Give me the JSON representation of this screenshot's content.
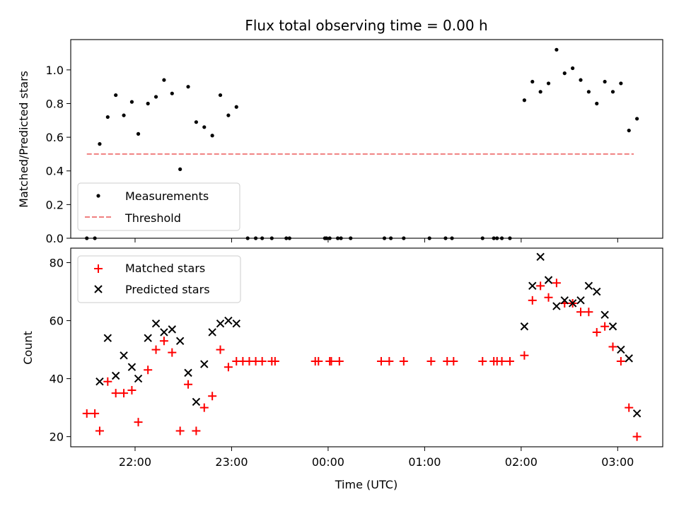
{
  "chart_data": [
    {
      "type": "scatter",
      "title": "Flux total observing time = 0.00 h",
      "xlabel": "",
      "ylabel": "Matched/Predicted stars",
      "xlim": [
        "21:20",
        "03:28"
      ],
      "ylim": [
        0,
        1.18
      ],
      "yticks": [
        "0.0",
        "0.2",
        "0.4",
        "0.6",
        "0.8",
        "1.0"
      ],
      "legend": {
        "placement": "lower-left",
        "entries": [
          "Measurements",
          "Threshold"
        ]
      },
      "colors": {
        "measurements": "#000000",
        "threshold": "#f08080"
      },
      "threshold": {
        "name": "Threshold",
        "x": [
          "21:30",
          "03:10"
        ],
        "y": 0.5
      },
      "series": [
        {
          "name": "Measurements",
          "points": [
            [
              "21:30",
              0.0
            ],
            [
              "21:35",
              0.0
            ],
            [
              "21:38",
              0.56
            ],
            [
              "21:43",
              0.72
            ],
            [
              "21:48",
              0.85
            ],
            [
              "21:53",
              0.73
            ],
            [
              "21:58",
              0.81
            ],
            [
              "22:02",
              0.62
            ],
            [
              "22:08",
              0.8
            ],
            [
              "22:13",
              0.84
            ],
            [
              "22:18",
              0.94
            ],
            [
              "22:23",
              0.86
            ],
            [
              "22:28",
              0.41
            ],
            [
              "22:33",
              0.9
            ],
            [
              "22:38",
              0.69
            ],
            [
              "22:43",
              0.66
            ],
            [
              "22:48",
              0.61
            ],
            [
              "22:53",
              0.85
            ],
            [
              "22:58",
              0.73
            ],
            [
              "23:03",
              0.78
            ],
            [
              "23:10",
              0.0
            ],
            [
              "23:15",
              0.0
            ],
            [
              "23:19",
              0.0
            ],
            [
              "23:25",
              0.0
            ],
            [
              "23:34",
              0.0
            ],
            [
              "23:36",
              0.0
            ],
            [
              "23:58",
              0.0
            ],
            [
              "23:59",
              0.0
            ],
            [
              "00:01",
              0.0
            ],
            [
              "00:06",
              0.0
            ],
            [
              "00:08",
              0.0
            ],
            [
              "00:14",
              0.0
            ],
            [
              "00:35",
              0.0
            ],
            [
              "00:39",
              0.0
            ],
            [
              "00:47",
              0.0
            ],
            [
              "01:03",
              0.0
            ],
            [
              "01:13",
              0.0
            ],
            [
              "01:17",
              0.0
            ],
            [
              "01:36",
              0.0
            ],
            [
              "01:43",
              0.0
            ],
            [
              "01:45",
              0.0
            ],
            [
              "01:48",
              0.0
            ],
            [
              "01:53",
              0.0
            ],
            [
              "02:02",
              0.82
            ],
            [
              "02:07",
              0.93
            ],
            [
              "02:12",
              0.87
            ],
            [
              "02:17",
              0.92
            ],
            [
              "02:22",
              1.12
            ],
            [
              "02:27",
              0.98
            ],
            [
              "02:32",
              1.01
            ],
            [
              "02:37",
              0.94
            ],
            [
              "02:42",
              0.87
            ],
            [
              "02:47",
              0.8
            ],
            [
              "02:52",
              0.93
            ],
            [
              "02:57",
              0.87
            ],
            [
              "03:02",
              0.92
            ],
            [
              "03:07",
              0.64
            ],
            [
              "03:12",
              0.71
            ]
          ]
        }
      ]
    },
    {
      "type": "scatter",
      "title": "",
      "xlabel": "Time (UTC)",
      "ylabel": "Count",
      "xlim": [
        "21:20",
        "03:28"
      ],
      "ylim": [
        16.5,
        85
      ],
      "yticks": [
        "20",
        "40",
        "60",
        "80"
      ],
      "xticks": [
        "22:00",
        "23:00",
        "00:00",
        "01:00",
        "02:00",
        "03:00"
      ],
      "legend": {
        "placement": "upper-left",
        "entries": [
          "Matched stars",
          "Predicted stars"
        ]
      },
      "colors": {
        "matched": "#ff0000",
        "predicted": "#000000"
      },
      "series": [
        {
          "name": "Matched stars",
          "points": [
            [
              "21:30",
              28
            ],
            [
              "21:35",
              28
            ],
            [
              "21:38",
              22
            ],
            [
              "21:43",
              39
            ],
            [
              "21:48",
              35
            ],
            [
              "21:53",
              35
            ],
            [
              "21:58",
              36
            ],
            [
              "22:02",
              25
            ],
            [
              "22:08",
              43
            ],
            [
              "22:13",
              50
            ],
            [
              "22:18",
              53
            ],
            [
              "22:23",
              49
            ],
            [
              "22:28",
              22
            ],
            [
              "22:33",
              38
            ],
            [
              "22:38",
              22
            ],
            [
              "22:43",
              30
            ],
            [
              "22:48",
              34
            ],
            [
              "22:53",
              50
            ],
            [
              "22:58",
              44
            ],
            [
              "23:03",
              46
            ],
            [
              "23:07",
              46
            ],
            [
              "23:11",
              46
            ],
            [
              "23:15",
              46
            ],
            [
              "23:19",
              46
            ],
            [
              "23:25",
              46
            ],
            [
              "23:27",
              46
            ],
            [
              "23:52",
              46
            ],
            [
              "23:54",
              46
            ],
            [
              "00:01",
              46
            ],
            [
              "00:02",
              46
            ],
            [
              "00:07",
              46
            ],
            [
              "00:33",
              46
            ],
            [
              "00:38",
              46
            ],
            [
              "00:47",
              46
            ],
            [
              "01:04",
              46
            ],
            [
              "01:14",
              46
            ],
            [
              "01:18",
              46
            ],
            [
              "01:36",
              46
            ],
            [
              "01:43",
              46
            ],
            [
              "01:45",
              46
            ],
            [
              "01:48",
              46
            ],
            [
              "01:53",
              46
            ],
            [
              "02:02",
              48
            ],
            [
              "02:07",
              67
            ],
            [
              "02:12",
              72
            ],
            [
              "02:17",
              68
            ],
            [
              "02:22",
              73
            ],
            [
              "02:27",
              66
            ],
            [
              "02:32",
              66
            ],
            [
              "02:37",
              63
            ],
            [
              "02:42",
              63
            ],
            [
              "02:47",
              56
            ],
            [
              "02:52",
              58
            ],
            [
              "02:57",
              51
            ],
            [
              "03:02",
              46
            ],
            [
              "03:07",
              30
            ],
            [
              "03:12",
              20
            ]
          ]
        },
        {
          "name": "Predicted stars",
          "points": [
            [
              "21:38",
              39
            ],
            [
              "21:43",
              54
            ],
            [
              "21:48",
              41
            ],
            [
              "21:53",
              48
            ],
            [
              "21:58",
              44
            ],
            [
              "22:02",
              40
            ],
            [
              "22:08",
              54
            ],
            [
              "22:13",
              59
            ],
            [
              "22:18",
              56
            ],
            [
              "22:23",
              57
            ],
            [
              "22:28",
              53
            ],
            [
              "22:33",
              42
            ],
            [
              "22:38",
              32
            ],
            [
              "22:43",
              45
            ],
            [
              "22:48",
              56
            ],
            [
              "22:53",
              59
            ],
            [
              "22:58",
              60
            ],
            [
              "23:03",
              59
            ],
            [
              "02:02",
              58
            ],
            [
              "02:07",
              72
            ],
            [
              "02:12",
              82
            ],
            [
              "02:17",
              74
            ],
            [
              "02:22",
              65
            ],
            [
              "02:27",
              67
            ],
            [
              "02:32",
              66
            ],
            [
              "02:37",
              67
            ],
            [
              "02:42",
              72
            ],
            [
              "02:47",
              70
            ],
            [
              "02:52",
              62
            ],
            [
              "02:57",
              58
            ],
            [
              "03:02",
              50
            ],
            [
              "03:07",
              47
            ],
            [
              "03:12",
              28
            ]
          ]
        }
      ]
    }
  ]
}
